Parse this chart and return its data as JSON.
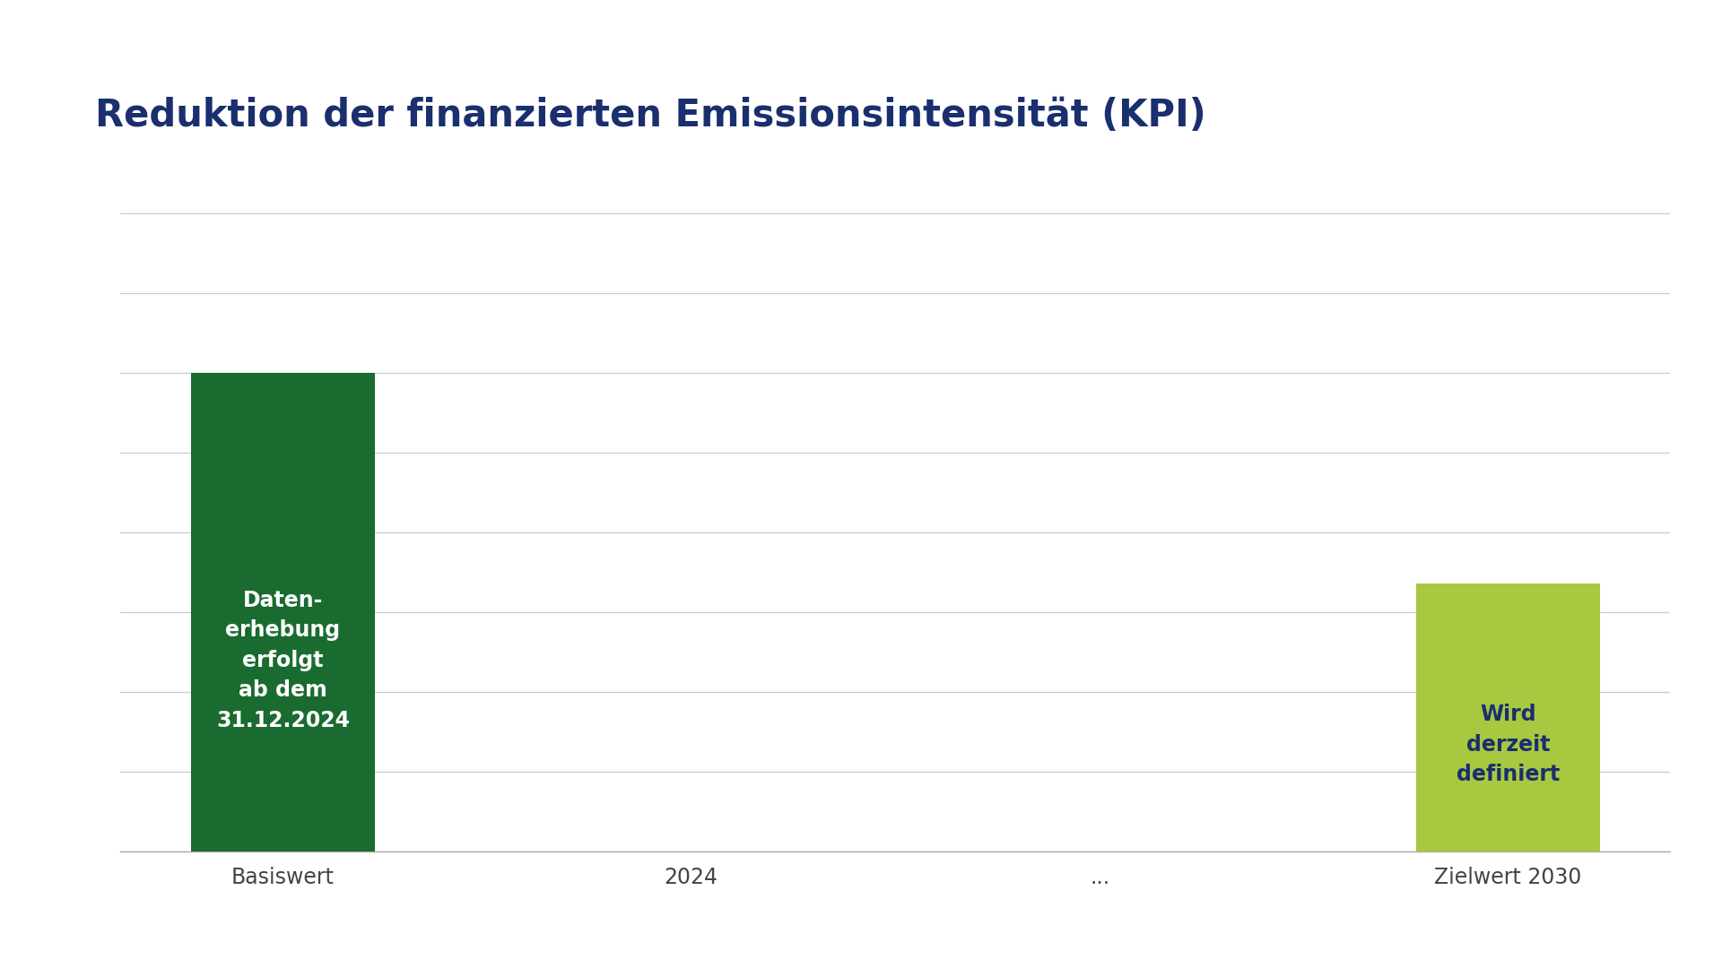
{
  "title": "Reduktion der finanzierten Emissionsintensität (KPI)",
  "title_color": "#1a2f6e",
  "title_fontsize": 30,
  "background_color": "#ffffff",
  "categories": [
    "Basiswert",
    "2024",
    "...",
    "Zielwert 2030"
  ],
  "values": [
    75,
    0,
    0,
    42
  ],
  "bar_colors": [
    "#1a6b2f",
    "#ffffff",
    "#ffffff",
    "#a8c840"
  ],
  "bar_labels": [
    "Daten-\nerhebung\nerfolgt\nab dem\n31.12.2024",
    "",
    "",
    "Wird\nderzeit\ndefiniert"
  ],
  "bar_label_colors": [
    "#ffffff",
    "#ffffff",
    "#ffffff",
    "#1a2f6e"
  ],
  "bar_label_fontsizes": [
    17,
    17,
    17,
    17
  ],
  "xlabel": "",
  "ylabel": "",
  "ylim": [
    0,
    100
  ],
  "grid_color": "#cccccc",
  "tick_color": "#444444",
  "xtick_fontsize": 17,
  "bar_width": 0.45,
  "figsize": [
    19.2,
    10.8
  ],
  "dpi": 100,
  "n_gridlines": 9
}
